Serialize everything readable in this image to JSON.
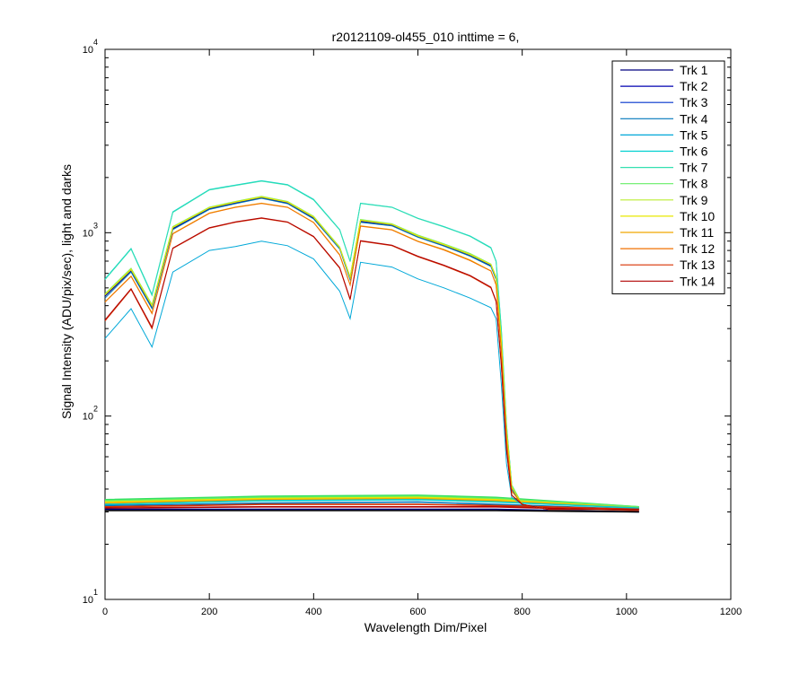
{
  "chart_data": {
    "type": "line",
    "title": "r20121109-ol455_010 inttime = 6,",
    "xlabel": "Wavelength Dim/Pixel",
    "ylabel": "Signal Intensity (ADU/pix/sec), light and darks",
    "xlim": [
      0,
      1200
    ],
    "ylim": [
      10,
      10000
    ],
    "yscale": "log",
    "grid": false,
    "legend_position": "top-right",
    "x_ticks": [
      {
        "value": 0,
        "label": "0"
      },
      {
        "value": 200,
        "label": "200"
      },
      {
        "value": 400,
        "label": "400"
      },
      {
        "value": 600,
        "label": "600"
      },
      {
        "value": 800,
        "label": "800"
      },
      {
        "value": 1000,
        "label": "1000"
      },
      {
        "value": 1200,
        "label": "1200"
      }
    ],
    "y_ticks": [
      {
        "value": 10,
        "base": "10",
        "exp": "1"
      },
      {
        "value": 100,
        "base": "10",
        "exp": "2"
      },
      {
        "value": 1000,
        "base": "10",
        "exp": "3"
      },
      {
        "value": 10000,
        "base": "10",
        "exp": "4"
      }
    ],
    "x": [
      0,
      50,
      90,
      130,
      200,
      250,
      300,
      350,
      400,
      450,
      470,
      490,
      550,
      600,
      650,
      700,
      740,
      750,
      760,
      770,
      780,
      800,
      850,
      900,
      1024
    ],
    "series": [
      {
        "name": "Trk 1",
        "color": "#00007f",
        "values": [
          450,
          620,
          390,
          1050,
          1350,
          1450,
          1550,
          1450,
          1200,
          820,
          560,
          1150,
          1100,
          950,
          850,
          750,
          660,
          560,
          250,
          80,
          40,
          33,
          31,
          31,
          31
        ]
      },
      {
        "name": "Trk 2",
        "color": "#0000b2",
        "values": [
          455,
          625,
          395,
          1060,
          1360,
          1460,
          1560,
          1460,
          1210,
          825,
          565,
          1160,
          1105,
          955,
          855,
          755,
          665,
          565,
          255,
          82,
          41,
          33,
          31,
          31,
          31
        ]
      },
      {
        "name": "Trk 3",
        "color": "#0033cc",
        "values": [
          460,
          630,
          400,
          1070,
          1370,
          1470,
          1570,
          1470,
          1220,
          830,
          570,
          1170,
          1110,
          960,
          860,
          760,
          670,
          570,
          260,
          84,
          41,
          33,
          31,
          31,
          31
        ]
      },
      {
        "name": "Trk 4",
        "color": "#0077bb",
        "values": [
          440,
          610,
          385,
          1040,
          1340,
          1440,
          1540,
          1440,
          1190,
          815,
          555,
          1140,
          1090,
          945,
          845,
          745,
          655,
          555,
          248,
          79,
          40,
          33,
          31,
          31,
          31
        ]
      },
      {
        "name": "Trk 5",
        "color": "#00a8d8",
        "values": [
          265,
          385,
          238,
          610,
          800,
          840,
          900,
          850,
          720,
          480,
          340,
          690,
          650,
          560,
          500,
          440,
          390,
          340,
          150,
          55,
          36,
          33,
          31,
          31,
          31
        ]
      },
      {
        "name": "Trk 6",
        "color": "#00d0d0",
        "values": [
          560,
          820,
          460,
          1300,
          1720,
          1820,
          1920,
          1830,
          1520,
          1040,
          700,
          1450,
          1380,
          1200,
          1080,
          960,
          830,
          700,
          300,
          90,
          42,
          33,
          31,
          31,
          31
        ]
      },
      {
        "name": "Trk 7",
        "color": "#33e0b0",
        "values": [
          555,
          815,
          455,
          1290,
          1710,
          1810,
          1910,
          1820,
          1510,
          1035,
          695,
          1445,
          1375,
          1195,
          1075,
          955,
          825,
          695,
          298,
          89,
          42,
          33,
          31,
          31,
          31
        ]
      },
      {
        "name": "Trk 8",
        "color": "#66ee66",
        "values": [
          465,
          640,
          405,
          1080,
          1380,
          1480,
          1580,
          1480,
          1230,
          835,
          575,
          1180,
          1120,
          970,
          870,
          770,
          675,
          575,
          265,
          86,
          42,
          33,
          31,
          31,
          31
        ]
      },
      {
        "name": "Trk 9",
        "color": "#bbee33",
        "values": [
          462,
          635,
          402,
          1075,
          1375,
          1475,
          1575,
          1475,
          1225,
          832,
          572,
          1175,
          1115,
          965,
          865,
          765,
          672,
          572,
          262,
          85,
          41,
          33,
          31,
          31,
          31
        ]
      },
      {
        "name": "Trk 10",
        "color": "#e8e800",
        "values": [
          458,
          628,
          398,
          1065,
          1365,
          1465,
          1565,
          1465,
          1215,
          828,
          568,
          1165,
          1108,
          958,
          858,
          758,
          668,
          568,
          258,
          83,
          41,
          33,
          31,
          31,
          31
        ]
      },
      {
        "name": "Trk 11",
        "color": "#f0a800",
        "values": [
          420,
          580,
          365,
          990,
          1280,
          1380,
          1450,
          1380,
          1140,
          760,
          520,
          1090,
          1040,
          900,
          810,
          710,
          620,
          520,
          230,
          75,
          39,
          33,
          31,
          31,
          31
        ]
      },
      {
        "name": "Trk 12",
        "color": "#f07000",
        "values": [
          418,
          578,
          362,
          985,
          1275,
          1375,
          1445,
          1375,
          1135,
          755,
          518,
          1085,
          1035,
          895,
          805,
          705,
          618,
          518,
          228,
          74,
          39,
          33,
          31,
          31,
          31
        ]
      },
      {
        "name": "Trk 13",
        "color": "#d83000",
        "values": [
          330,
          490,
          300,
          820,
          1060,
          1140,
          1200,
          1140,
          950,
          640,
          430,
          900,
          850,
          740,
          660,
          580,
          500,
          420,
          190,
          65,
          37,
          33,
          31,
          31,
          31
        ]
      },
      {
        "name": "Trk 14",
        "color": "#b00000",
        "values": [
          335,
          495,
          305,
          825,
          1065,
          1145,
          1205,
          1145,
          955,
          645,
          435,
          905,
          855,
          745,
          665,
          585,
          505,
          425,
          192,
          66,
          37,
          33,
          31,
          31,
          31
        ]
      }
    ],
    "dark_series": [
      {
        "color": "#33e060",
        "x": [
          0,
          300,
          600,
          750,
          1024
        ],
        "values": [
          35,
          36.5,
          37,
          36,
          32
        ]
      },
      {
        "color": "#66ee66",
        "x": [
          0,
          300,
          600,
          750,
          1024
        ],
        "values": [
          34.5,
          36,
          36.5,
          35.5,
          32
        ]
      },
      {
        "color": "#e8e800",
        "x": [
          0,
          300,
          600,
          750,
          1024
        ],
        "values": [
          34,
          35.5,
          36,
          35,
          31.5
        ]
      },
      {
        "color": "#f0a800",
        "x": [
          0,
          300,
          600,
          750,
          1024
        ],
        "values": [
          33.5,
          35,
          35.5,
          34.5,
          31.5
        ]
      },
      {
        "color": "#00d0d0",
        "x": [
          0,
          300,
          600,
          750,
          1024
        ],
        "values": [
          33,
          34.5,
          35,
          34,
          31.5
        ]
      },
      {
        "color": "#0077bb",
        "x": [
          0,
          300,
          600,
          750,
          1024
        ],
        "values": [
          32.5,
          33.5,
          34,
          33,
          31
        ]
      },
      {
        "color": "#d83000",
        "x": [
          0,
          300,
          600,
          750,
          1024
        ],
        "values": [
          32,
          33,
          33,
          32.5,
          31
        ]
      },
      {
        "color": "#b00000",
        "x": [
          0,
          300,
          600,
          750,
          1024
        ],
        "values": [
          31.5,
          32,
          32,
          32,
          30.5
        ]
      },
      {
        "color": "#00007f",
        "x": [
          0,
          300,
          600,
          750,
          1024
        ],
        "values": [
          31,
          31,
          31,
          31,
          30
        ]
      },
      {
        "color": "#000000",
        "x": [
          0,
          300,
          600,
          750,
          1024
        ],
        "values": [
          30.5,
          30.5,
          30.5,
          30.5,
          30
        ]
      }
    ]
  }
}
